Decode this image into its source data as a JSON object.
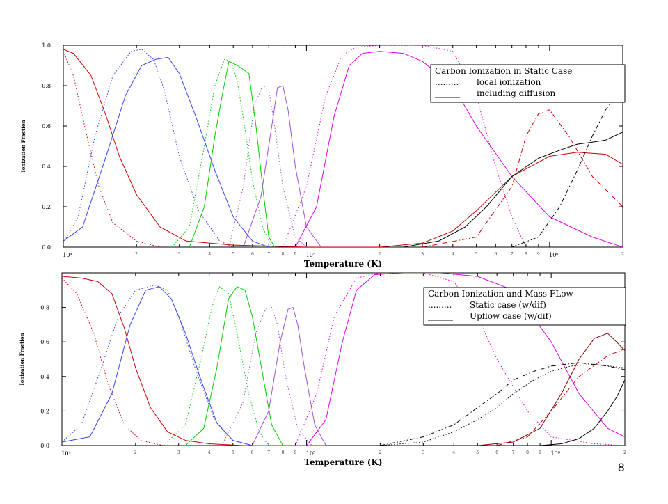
{
  "page_number": "8",
  "chart_data": [
    {
      "type": "line",
      "title": "",
      "xlabel": "Temperature (K)",
      "ylabel": "Ionization Fraction",
      "xscale": "log",
      "xlim": [
        10000,
        2000000
      ],
      "ylim": [
        0,
        1.0
      ],
      "yticks": [
        "0.0",
        "0.2",
        "0.4",
        "0.6",
        "0.8",
        "1.0"
      ],
      "xticks": [
        "10⁴",
        "10⁵",
        "10⁶"
      ],
      "legend": {
        "position": "top-right",
        "title": "Carbon Ionization in Static Case",
        "entries": [
          "local ionization",
          "including diffusion"
        ],
        "markers": [
          ".........",
          "______"
        ]
      },
      "series": [
        {
          "color": "#cc0000",
          "style": "dotted",
          "x": [
            10000,
            11000,
            12500,
            14000,
            16000,
            20000,
            25000
          ],
          "y": [
            0.97,
            0.85,
            0.55,
            0.3,
            0.12,
            0.03,
            0.0
          ]
        },
        {
          "color": "#cc0000",
          "style": "solid",
          "x": [
            10000,
            11000,
            13000,
            15000,
            17000,
            20000,
            25000,
            32000,
            50000,
            100000,
            200000
          ],
          "y": [
            0.98,
            0.96,
            0.85,
            0.65,
            0.45,
            0.26,
            0.1,
            0.03,
            0.01,
            0.0,
            0.0
          ]
        },
        {
          "color": "#3344ee",
          "style": "dotted",
          "x": [
            10000,
            11500,
            13500,
            16000,
            19000,
            21000,
            23500,
            26000,
            30000,
            36000,
            44000,
            50000
          ],
          "y": [
            0.02,
            0.15,
            0.55,
            0.85,
            0.97,
            0.98,
            0.93,
            0.78,
            0.45,
            0.18,
            0.03,
            0.0
          ]
        },
        {
          "color": "#3344ee",
          "style": "solid",
          "x": [
            10000,
            12000,
            15000,
            18000,
            21000,
            24000,
            27000,
            30000,
            35000,
            42000,
            50000,
            60000,
            70000
          ],
          "y": [
            0.03,
            0.1,
            0.45,
            0.75,
            0.9,
            0.93,
            0.94,
            0.86,
            0.65,
            0.38,
            0.15,
            0.03,
            0.0
          ]
        },
        {
          "color": "#00cc00",
          "style": "dotted",
          "x": [
            28000,
            33000,
            38000,
            42000,
            46000,
            49000,
            52000,
            56000,
            60000,
            66000,
            72000
          ],
          "y": [
            0.0,
            0.1,
            0.5,
            0.8,
            0.93,
            0.92,
            0.82,
            0.58,
            0.33,
            0.1,
            0.0
          ]
        },
        {
          "color": "#00cc00",
          "style": "solid",
          "x": [
            33000,
            38000,
            42000,
            45000,
            48000,
            52000,
            58000,
            62000,
            66000,
            70000,
            74000
          ],
          "y": [
            0.0,
            0.2,
            0.55,
            0.75,
            0.92,
            0.9,
            0.86,
            0.6,
            0.3,
            0.05,
            0.0
          ]
        },
        {
          "color": "#a050d0",
          "style": "dotted",
          "x": [
            48000,
            55000,
            61000,
            66000,
            70000,
            74000,
            80000,
            90000,
            100000
          ],
          "y": [
            0.0,
            0.3,
            0.7,
            0.8,
            0.78,
            0.6,
            0.3,
            0.05,
            0.0
          ]
        },
        {
          "color": "#a050d0",
          "style": "solid",
          "x": [
            55000,
            65000,
            72000,
            76000,
            80000,
            84000,
            90000,
            100000,
            115000
          ],
          "y": [
            0.0,
            0.25,
            0.6,
            0.79,
            0.8,
            0.68,
            0.4,
            0.1,
            0.0
          ]
        },
        {
          "color": "#e000e0",
          "style": "dotted",
          "x": [
            80000,
            100000,
            120000,
            140000,
            160000,
            200000,
            300000,
            400000,
            500000,
            600000,
            700000,
            800000
          ],
          "y": [
            0.0,
            0.3,
            0.75,
            0.95,
            0.99,
            1.0,
            1.0,
            0.97,
            0.75,
            0.4,
            0.15,
            0.0
          ]
        },
        {
          "color": "#e000e0",
          "style": "solid",
          "x": [
            90000,
            110000,
            130000,
            150000,
            170000,
            200000,
            250000,
            300000,
            400000,
            500000,
            700000,
            1000000,
            1500000,
            2000000
          ],
          "y": [
            0.0,
            0.2,
            0.65,
            0.9,
            0.96,
            0.97,
            0.96,
            0.92,
            0.8,
            0.6,
            0.35,
            0.15,
            0.05,
            0.0
          ]
        },
        {
          "color": "#cc0000",
          "style": "dashdot",
          "x": [
            300000,
            500000,
            700000,
            800000,
            900000,
            1000000,
            1200000,
            1500000,
            2000000
          ],
          "y": [
            0.0,
            0.05,
            0.3,
            0.55,
            0.66,
            0.68,
            0.55,
            0.35,
            0.2
          ]
        },
        {
          "color": "#cc0000",
          "style": "solid",
          "x": [
            200000,
            300000,
            400000,
            500000,
            700000,
            1000000,
            1300000,
            1700000,
            2000000
          ],
          "y": [
            0.0,
            0.02,
            0.08,
            0.18,
            0.35,
            0.45,
            0.47,
            0.46,
            0.41
          ]
        },
        {
          "color": "#000000",
          "style": "dashdot",
          "x": [
            700000,
            900000,
            1100000,
            1300000,
            1500000,
            1700000,
            2000000
          ],
          "y": [
            0.0,
            0.05,
            0.2,
            0.38,
            0.55,
            0.68,
            0.79
          ]
        },
        {
          "color": "#000000",
          "style": "solid",
          "x": [
            250000,
            350000,
            450000,
            550000,
            700000,
            900000,
            1100000,
            1300000,
            1500000,
            1700000,
            2000000
          ],
          "y": [
            0.0,
            0.03,
            0.1,
            0.2,
            0.35,
            0.44,
            0.48,
            0.51,
            0.52,
            0.53,
            0.57
          ]
        }
      ]
    },
    {
      "type": "line",
      "title": "",
      "xlabel": "Temperature (K)",
      "ylabel": "Ionization Fraction",
      "xscale": "log",
      "xlim": [
        10000,
        2000000
      ],
      "ylim": [
        0,
        1.0
      ],
      "yticks": [
        "0.0",
        "0.2",
        "0.4",
        "0.6",
        "0.8"
      ],
      "xticks": [
        "10⁴",
        "10⁵",
        "10⁶"
      ],
      "legend": {
        "position": "top-right",
        "title": "Carbon Ionization and Mass FLow",
        "entries": [
          "Static case (w/dif)",
          "Upflow case (w/dif)"
        ],
        "markers": [
          ".........",
          "______"
        ]
      },
      "series": [
        {
          "color": "#cc0000",
          "style": "dotted",
          "x": [
            10000,
            11500,
            13500,
            15500,
            18000,
            21000,
            26000,
            32000
          ],
          "y": [
            0.97,
            0.88,
            0.65,
            0.35,
            0.12,
            0.03,
            0.0,
            0.0
          ]
        },
        {
          "color": "#cc0000",
          "style": "solid",
          "x": [
            10000,
            12000,
            14000,
            16000,
            18000,
            20000,
            23000,
            27000,
            32000,
            40000,
            55000,
            80000,
            120000
          ],
          "y": [
            0.98,
            0.97,
            0.95,
            0.88,
            0.68,
            0.45,
            0.22,
            0.08,
            0.03,
            0.01,
            0.0,
            0.0,
            0.0
          ]
        },
        {
          "color": "#3344ee",
          "style": "dotted",
          "x": [
            10000,
            12000,
            14500,
            17000,
            20000,
            24000,
            27000,
            30000,
            35000,
            42000,
            50000,
            60000
          ],
          "y": [
            0.02,
            0.12,
            0.45,
            0.75,
            0.9,
            0.93,
            0.9,
            0.75,
            0.45,
            0.15,
            0.03,
            0.0
          ]
        },
        {
          "color": "#3344ee",
          "style": "solid",
          "x": [
            10000,
            13000,
            16000,
            19000,
            22000,
            25000,
            28000,
            32000,
            37000,
            43000,
            50000,
            60000,
            70000
          ],
          "y": [
            0.02,
            0.05,
            0.3,
            0.7,
            0.9,
            0.92,
            0.85,
            0.65,
            0.38,
            0.13,
            0.03,
            0.0,
            0.0
          ]
        },
        {
          "color": "#00cc00",
          "style": "dotted",
          "x": [
            26000,
            32000,
            37000,
            41000,
            44000,
            48000,
            52000,
            58000,
            64000,
            70000
          ],
          "y": [
            0.0,
            0.12,
            0.5,
            0.8,
            0.92,
            0.88,
            0.65,
            0.3,
            0.08,
            0.0
          ]
        },
        {
          "color": "#00cc00",
          "style": "solid",
          "x": [
            32000,
            38000,
            43000,
            48000,
            52000,
            56000,
            60000,
            66000,
            72000,
            80000
          ],
          "y": [
            0.0,
            0.1,
            0.45,
            0.85,
            0.92,
            0.9,
            0.75,
            0.42,
            0.12,
            0.0
          ]
        },
        {
          "color": "#a050d0",
          "style": "dotted",
          "x": [
            45000,
            55000,
            62000,
            68000,
            72000,
            76000,
            82000,
            92000,
            105000
          ],
          "y": [
            0.0,
            0.25,
            0.65,
            0.79,
            0.8,
            0.7,
            0.4,
            0.1,
            0.0
          ]
        },
        {
          "color": "#a050d0",
          "style": "solid",
          "x": [
            60000,
            70000,
            78000,
            84000,
            88000,
            92000,
            98000,
            108000,
            120000
          ],
          "y": [
            0.0,
            0.2,
            0.6,
            0.79,
            0.8,
            0.7,
            0.45,
            0.12,
            0.0
          ]
        },
        {
          "color": "#e000e0",
          "style": "dotted",
          "x": [
            90000,
            110000,
            130000,
            160000,
            200000,
            300000,
            400000,
            500000,
            600000,
            800000,
            1000000,
            1500000,
            2000000
          ],
          "y": [
            0.0,
            0.3,
            0.75,
            0.97,
            1.0,
            1.0,
            0.95,
            0.75,
            0.5,
            0.2,
            0.05,
            0.01,
            0.0
          ]
        },
        {
          "color": "#e000e0",
          "style": "solid",
          "x": [
            100000,
            120000,
            140000,
            160000,
            190000,
            250000,
            350000,
            500000,
            700000,
            1000000,
            1300000,
            1700000,
            2000000
          ],
          "y": [
            0.0,
            0.15,
            0.6,
            0.9,
            0.99,
            1.0,
            1.0,
            0.98,
            0.9,
            0.6,
            0.3,
            0.1,
            0.05
          ]
        },
        {
          "color": "#000000",
          "style": "dashdot",
          "x": [
            200000,
            300000,
            400000,
            500000,
            600000,
            700000,
            850000,
            1000000,
            1300000,
            1700000,
            2000000
          ],
          "y": [
            0.0,
            0.05,
            0.12,
            0.22,
            0.3,
            0.38,
            0.43,
            0.46,
            0.48,
            0.46,
            0.44
          ]
        },
        {
          "color": "#cc0000",
          "style": "dashdot",
          "x": [
            600000,
            800000,
            1000000,
            1300000,
            1700000,
            2000000
          ],
          "y": [
            0.0,
            0.05,
            0.2,
            0.4,
            0.52,
            0.56
          ]
        },
        {
          "color": "#000000",
          "style": "dotted",
          "x": [
            200000,
            300000,
            400000,
            500000,
            600000,
            700000,
            850000,
            1000000,
            1200000,
            1500000,
            2000000
          ],
          "y": [
            0.0,
            0.02,
            0.08,
            0.15,
            0.22,
            0.3,
            0.38,
            0.43,
            0.46,
            0.47,
            0.45
          ]
        },
        {
          "color": "#880000",
          "style": "solid",
          "x": [
            500000,
            700000,
            900000,
            1100000,
            1300000,
            1500000,
            1700000,
            1850000,
            2000000
          ],
          "y": [
            0.0,
            0.02,
            0.1,
            0.3,
            0.5,
            0.62,
            0.65,
            0.6,
            0.55
          ]
        },
        {
          "color": "#000000",
          "style": "solid",
          "x": [
            900000,
            1100000,
            1300000,
            1500000,
            1700000,
            1850000,
            2000000
          ],
          "y": [
            0.0,
            0.01,
            0.04,
            0.1,
            0.2,
            0.28,
            0.38
          ]
        }
      ]
    }
  ]
}
